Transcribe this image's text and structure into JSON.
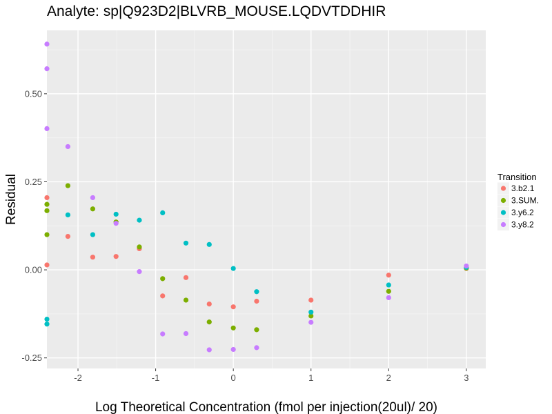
{
  "chart_data": {
    "type": "scatter",
    "title": "Analyte: sp|Q923D2|BLVRB_MOUSE.LQDVTDDHIR",
    "xlabel": "Log Theoretical Concentration (fmol per injection(20ul)/ 20)",
    "ylabel": "Residual",
    "xlim": [
      -2.4,
      3.25
    ],
    "ylim": [
      -0.28,
      0.68
    ],
    "x_ticks": [
      -2,
      -1,
      0,
      1,
      2,
      3
    ],
    "x_tick_labels": [
      "-2",
      "-1",
      "0",
      "1",
      "2",
      "3"
    ],
    "y_ticks": [
      -0.25,
      0.0,
      0.25,
      0.5
    ],
    "y_tick_labels": [
      "-0.25",
      "0.00",
      "0.25",
      "0.50"
    ],
    "grid": true,
    "panel_background": "#ebebeb",
    "legend": {
      "title": "Transition",
      "position": "right"
    },
    "series": [
      {
        "name": "3.b2.1",
        "color": "#f8766d",
        "points": [
          [
            -2.4,
            0.205
          ],
          [
            -2.4,
            0.014
          ],
          [
            -2.13,
            0.095
          ],
          [
            -1.81,
            0.036
          ],
          [
            -1.51,
            0.038
          ],
          [
            -1.21,
            0.06
          ],
          [
            -0.91,
            -0.074
          ],
          [
            -0.61,
            -0.022
          ],
          [
            -0.31,
            -0.097
          ],
          [
            0.0,
            -0.105
          ],
          [
            0.3,
            -0.089
          ],
          [
            1.0,
            -0.086
          ],
          [
            2.0,
            -0.015
          ],
          [
            3.0,
            0.004
          ]
        ]
      },
      {
        "name": "3.SUM.",
        "color": "#7cae00",
        "points": [
          [
            -2.4,
            0.186
          ],
          [
            -2.4,
            0.168
          ],
          [
            -2.4,
            0.1
          ],
          [
            -2.13,
            0.239
          ],
          [
            -1.81,
            0.173
          ],
          [
            -1.51,
            0.136
          ],
          [
            -1.21,
            0.065
          ],
          [
            -0.91,
            -0.025
          ],
          [
            -0.61,
            -0.086
          ],
          [
            -0.31,
            -0.148
          ],
          [
            0.0,
            -0.165
          ],
          [
            0.3,
            -0.17
          ],
          [
            1.0,
            -0.131
          ],
          [
            2.0,
            -0.061
          ],
          [
            3.0,
            0.005
          ]
        ]
      },
      {
        "name": "3.y6.2",
        "color": "#00bfc4",
        "points": [
          [
            -2.4,
            -0.14
          ],
          [
            -2.4,
            -0.154
          ],
          [
            -2.13,
            0.156
          ],
          [
            -1.81,
            0.1
          ],
          [
            -1.51,
            0.158
          ],
          [
            -1.21,
            0.141
          ],
          [
            -0.91,
            0.162
          ],
          [
            -0.61,
            0.076
          ],
          [
            -0.31,
            0.072
          ],
          [
            0.0,
            0.004
          ],
          [
            0.3,
            -0.062
          ],
          [
            1.0,
            -0.12
          ],
          [
            2.0,
            -0.043
          ],
          [
            3.0,
            0.007
          ]
        ]
      },
      {
        "name": "3.y8.2",
        "color": "#c77cff",
        "points": [
          [
            -2.4,
            0.641
          ],
          [
            -2.4,
            0.571
          ],
          [
            -2.4,
            0.401
          ],
          [
            -2.13,
            0.35
          ],
          [
            -1.81,
            0.205
          ],
          [
            -1.51,
            0.132
          ],
          [
            -1.21,
            -0.005
          ],
          [
            -0.91,
            -0.182
          ],
          [
            -0.61,
            -0.181
          ],
          [
            -0.31,
            -0.227
          ],
          [
            0.0,
            -0.226
          ],
          [
            0.3,
            -0.221
          ],
          [
            1.0,
            -0.149
          ],
          [
            2.0,
            -0.079
          ],
          [
            3.0,
            0.011
          ]
        ]
      }
    ]
  }
}
